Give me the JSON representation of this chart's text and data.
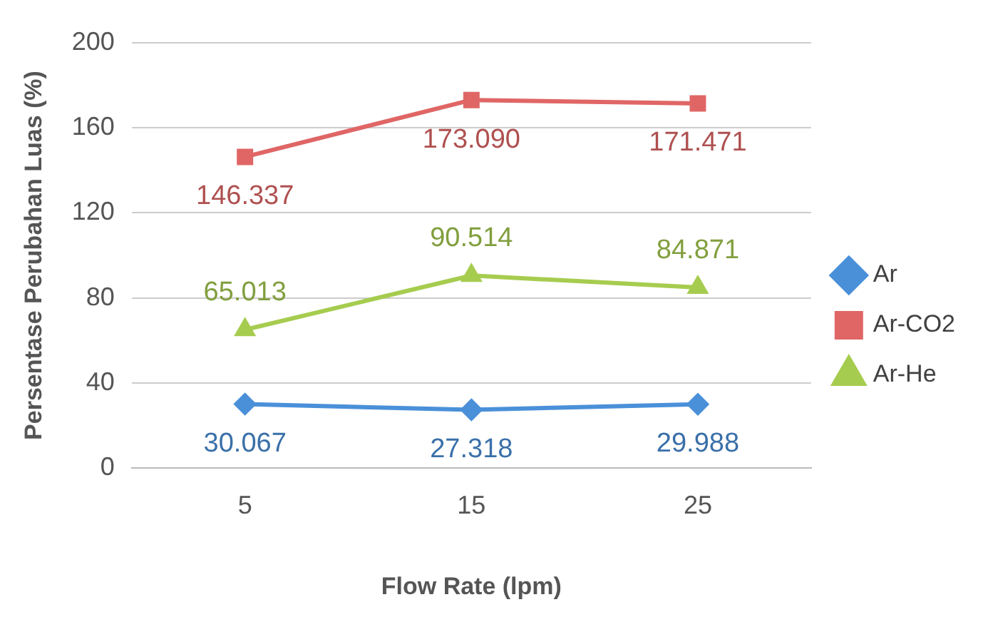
{
  "chart_data": {
    "type": "line",
    "xlabel": "Flow Rate (lpm)",
    "ylabel": "Persentase Perubahan Luas (%)",
    "categories": [
      "5",
      "15",
      "25"
    ],
    "series": [
      {
        "name": "Ar",
        "color": "#4a90d9",
        "marker": "diamond",
        "values": [
          30.067,
          27.318,
          29.988
        ],
        "value_labels": [
          "30.067",
          "27.318",
          "29.988"
        ]
      },
      {
        "name": "Ar-CO2",
        "color": "#e06666",
        "marker": "square",
        "values": [
          146.337,
          173.09,
          171.471
        ],
        "value_labels": [
          "146.337",
          "173.090",
          "171.471"
        ]
      },
      {
        "name": "Ar-He",
        "color": "#a6cc4f",
        "marker": "triangle",
        "values": [
          65.013,
          90.514,
          84.871
        ],
        "value_labels": [
          "65.013",
          "90.514",
          "84.871"
        ]
      }
    ],
    "ylim": [
      0,
      200
    ],
    "yticks": [
      0,
      40,
      80,
      120,
      160,
      200
    ],
    "grid": "y",
    "legend": "right",
    "line_style": "solid"
  }
}
